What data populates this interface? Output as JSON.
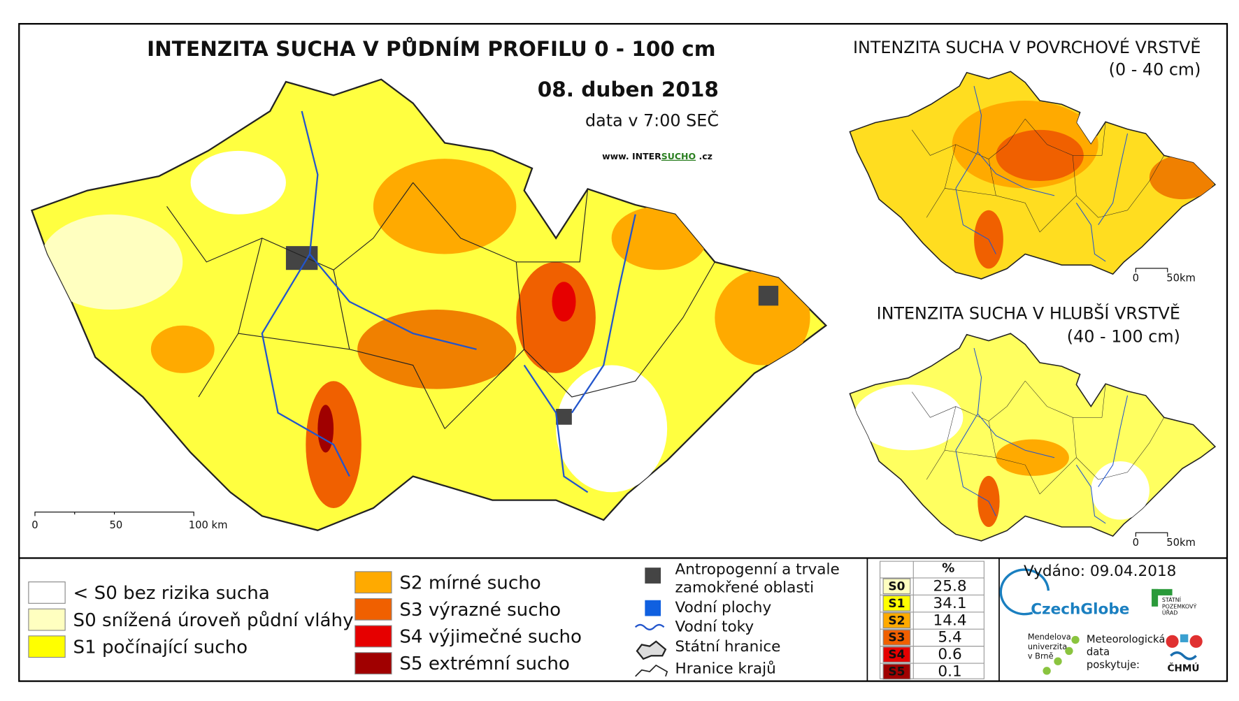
{
  "main_map": {
    "title": "INTENZITA SUCHA V PŮDNÍM PROFILU 0 - 100 cm",
    "date": "08. duben 2018",
    "data_time": "data v 7:00 SEČ",
    "website": {
      "prefix": "www. INTER",
      "highlight": "SUCHO",
      "suffix": " .cz"
    },
    "scale": [
      "0",
      "50",
      "100 km"
    ]
  },
  "inset_surface": {
    "title": "INTENZITA SUCHA V POVRCHOVÉ VRSTVĚ",
    "depth": "(0 - 40 cm)",
    "scale": [
      "0",
      "50km"
    ]
  },
  "inset_deep": {
    "title": "INTENZITA SUCHA V HLUBŠÍ VRSTVĚ",
    "depth": "(40 - 100 cm)",
    "scale": [
      "0",
      "50km"
    ]
  },
  "legend": {
    "drought_classes": [
      {
        "label": "< S0 bez rizika sucha",
        "color": "#ffffff"
      },
      {
        "label": "S0 snížená úroveň půdní vláhy",
        "color": "#ffffc0"
      },
      {
        "label": "S1 počínající sucho",
        "color": "#ffff00"
      },
      {
        "label": "S2 mírné sucho",
        "color": "#ffaa00"
      },
      {
        "label": "S3 výrazné sucho",
        "color": "#f06000"
      },
      {
        "label": "S4 výjimečné sucho",
        "color": "#e60000"
      },
      {
        "label": "S5 extrémní sucho",
        "color": "#a00000"
      }
    ],
    "other": [
      {
        "label": "Antropogenní a trvale zamokřené oblasti"
      },
      {
        "label": "Vodní plochy"
      },
      {
        "label": "Vodní toky"
      },
      {
        "label": "Státní hranice"
      },
      {
        "label": "Hranice krajů"
      }
    ]
  },
  "stats": {
    "header": "%",
    "rows": [
      {
        "class": "S0",
        "percent": 25.8,
        "color": "#ffffc0"
      },
      {
        "class": "S1",
        "percent": 34.1,
        "color": "#ffff00"
      },
      {
        "class": "S2",
        "percent": 14.4,
        "color": "#ffaa00"
      },
      {
        "class": "S3",
        "percent": 5.4,
        "color": "#f06000"
      },
      {
        "class": "S4",
        "percent": 0.6,
        "color": "#e60000"
      },
      {
        "class": "S5",
        "percent": 0.1,
        "color": "#a00000"
      }
    ]
  },
  "footer": {
    "issued": "Vydáno: 09.04.2018",
    "logos": {
      "czechglobe": "CzechGlobe",
      "spu": [
        "STÁTNÍ",
        "POZEMKOVÝ",
        "ÚŘAD"
      ],
      "mendelu": [
        "Mendelova",
        "univerzita",
        "v Brně"
      ],
      "chmu_note": [
        "Meteorologická",
        "data",
        "poskytuje:"
      ],
      "chmu": "ČHMÚ"
    }
  }
}
